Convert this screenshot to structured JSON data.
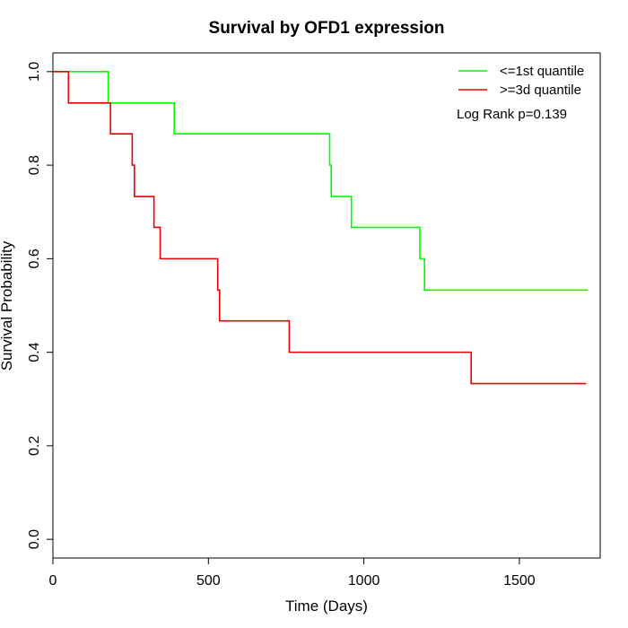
{
  "chart_data": {
    "type": "line",
    "subtype": "kaplan-meier step",
    "title": "Survival by OFD1 expression",
    "xlabel": "Time (Days)",
    "ylabel": "Survival Probability",
    "xlim": [
      0,
      1760
    ],
    "ylim": [
      -0.04,
      1.04
    ],
    "xticks": [
      0,
      500,
      1000,
      1500
    ],
    "xtick_labels": [
      "0",
      "500",
      "1000",
      "1500"
    ],
    "yticks": [
      0.0,
      0.2,
      0.4,
      0.6,
      0.8,
      1.0
    ],
    "ytick_labels": [
      "0.0",
      "0.2",
      "0.4",
      "0.6",
      "0.8",
      "1.0"
    ],
    "grid": false,
    "legend_position": "top-right",
    "annotation": "Log Rank p=0.139",
    "series": [
      {
        "name": "<=1st quantile",
        "color": "#00ff00",
        "x": [
          0,
          178,
          390,
          890,
          895,
          960,
          1180,
          1195,
          1720
        ],
        "y": [
          1.0,
          0.933,
          0.867,
          0.8,
          0.733,
          0.667,
          0.6,
          0.533,
          0.533
        ]
      },
      {
        "name": ">=3d quantile",
        "color": "#ee0000",
        "x": [
          0,
          50,
          185,
          255,
          262,
          325,
          345,
          530,
          536,
          760,
          1345,
          1715
        ],
        "y": [
          1.0,
          0.933,
          0.867,
          0.8,
          0.733,
          0.667,
          0.6,
          0.533,
          0.467,
          0.4,
          0.333,
          0.333
        ]
      }
    ]
  }
}
